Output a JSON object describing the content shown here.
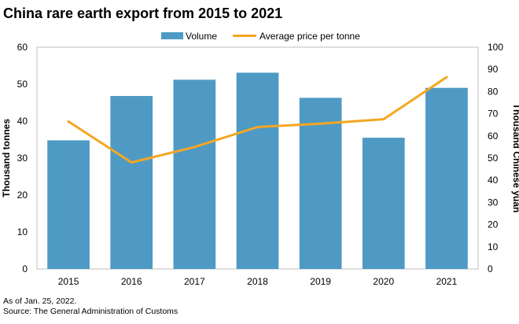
{
  "chart_data": {
    "type": "bar",
    "title": "China rare earth export from 2015 to 2021",
    "categories": [
      "2015",
      "2016",
      "2017",
      "2018",
      "2019",
      "2020",
      "2021"
    ],
    "series": [
      {
        "name": "Volume",
        "type": "bar",
        "axis": "left",
        "color": "#4e9ac4",
        "values": [
          34.8,
          46.8,
          51.2,
          53.1,
          46.3,
          35.5,
          49.0
        ]
      },
      {
        "name": "Average price per tonne",
        "type": "line",
        "axis": "right",
        "color": "#f5a623",
        "values": [
          66.5,
          48,
          55,
          64,
          65.5,
          67.5,
          86.5
        ]
      }
    ],
    "ylabel": "Thousand tonnes",
    "ylabel_right": "Thousand Chinese yuan",
    "ylim": [
      0,
      60
    ],
    "ylim_right": [
      0,
      100
    ],
    "yticks": [
      "0",
      "10",
      "20",
      "30",
      "40",
      "50",
      "60"
    ],
    "yticks_right": [
      "0",
      "10",
      "20",
      "30",
      "40",
      "50",
      "60",
      "70",
      "80",
      "90",
      "100"
    ],
    "grid": false,
    "legend_position": "top-center"
  },
  "footnotes": {
    "date": "As of Jan. 25, 2022.",
    "source": "Source: The General Administration of Customs"
  }
}
